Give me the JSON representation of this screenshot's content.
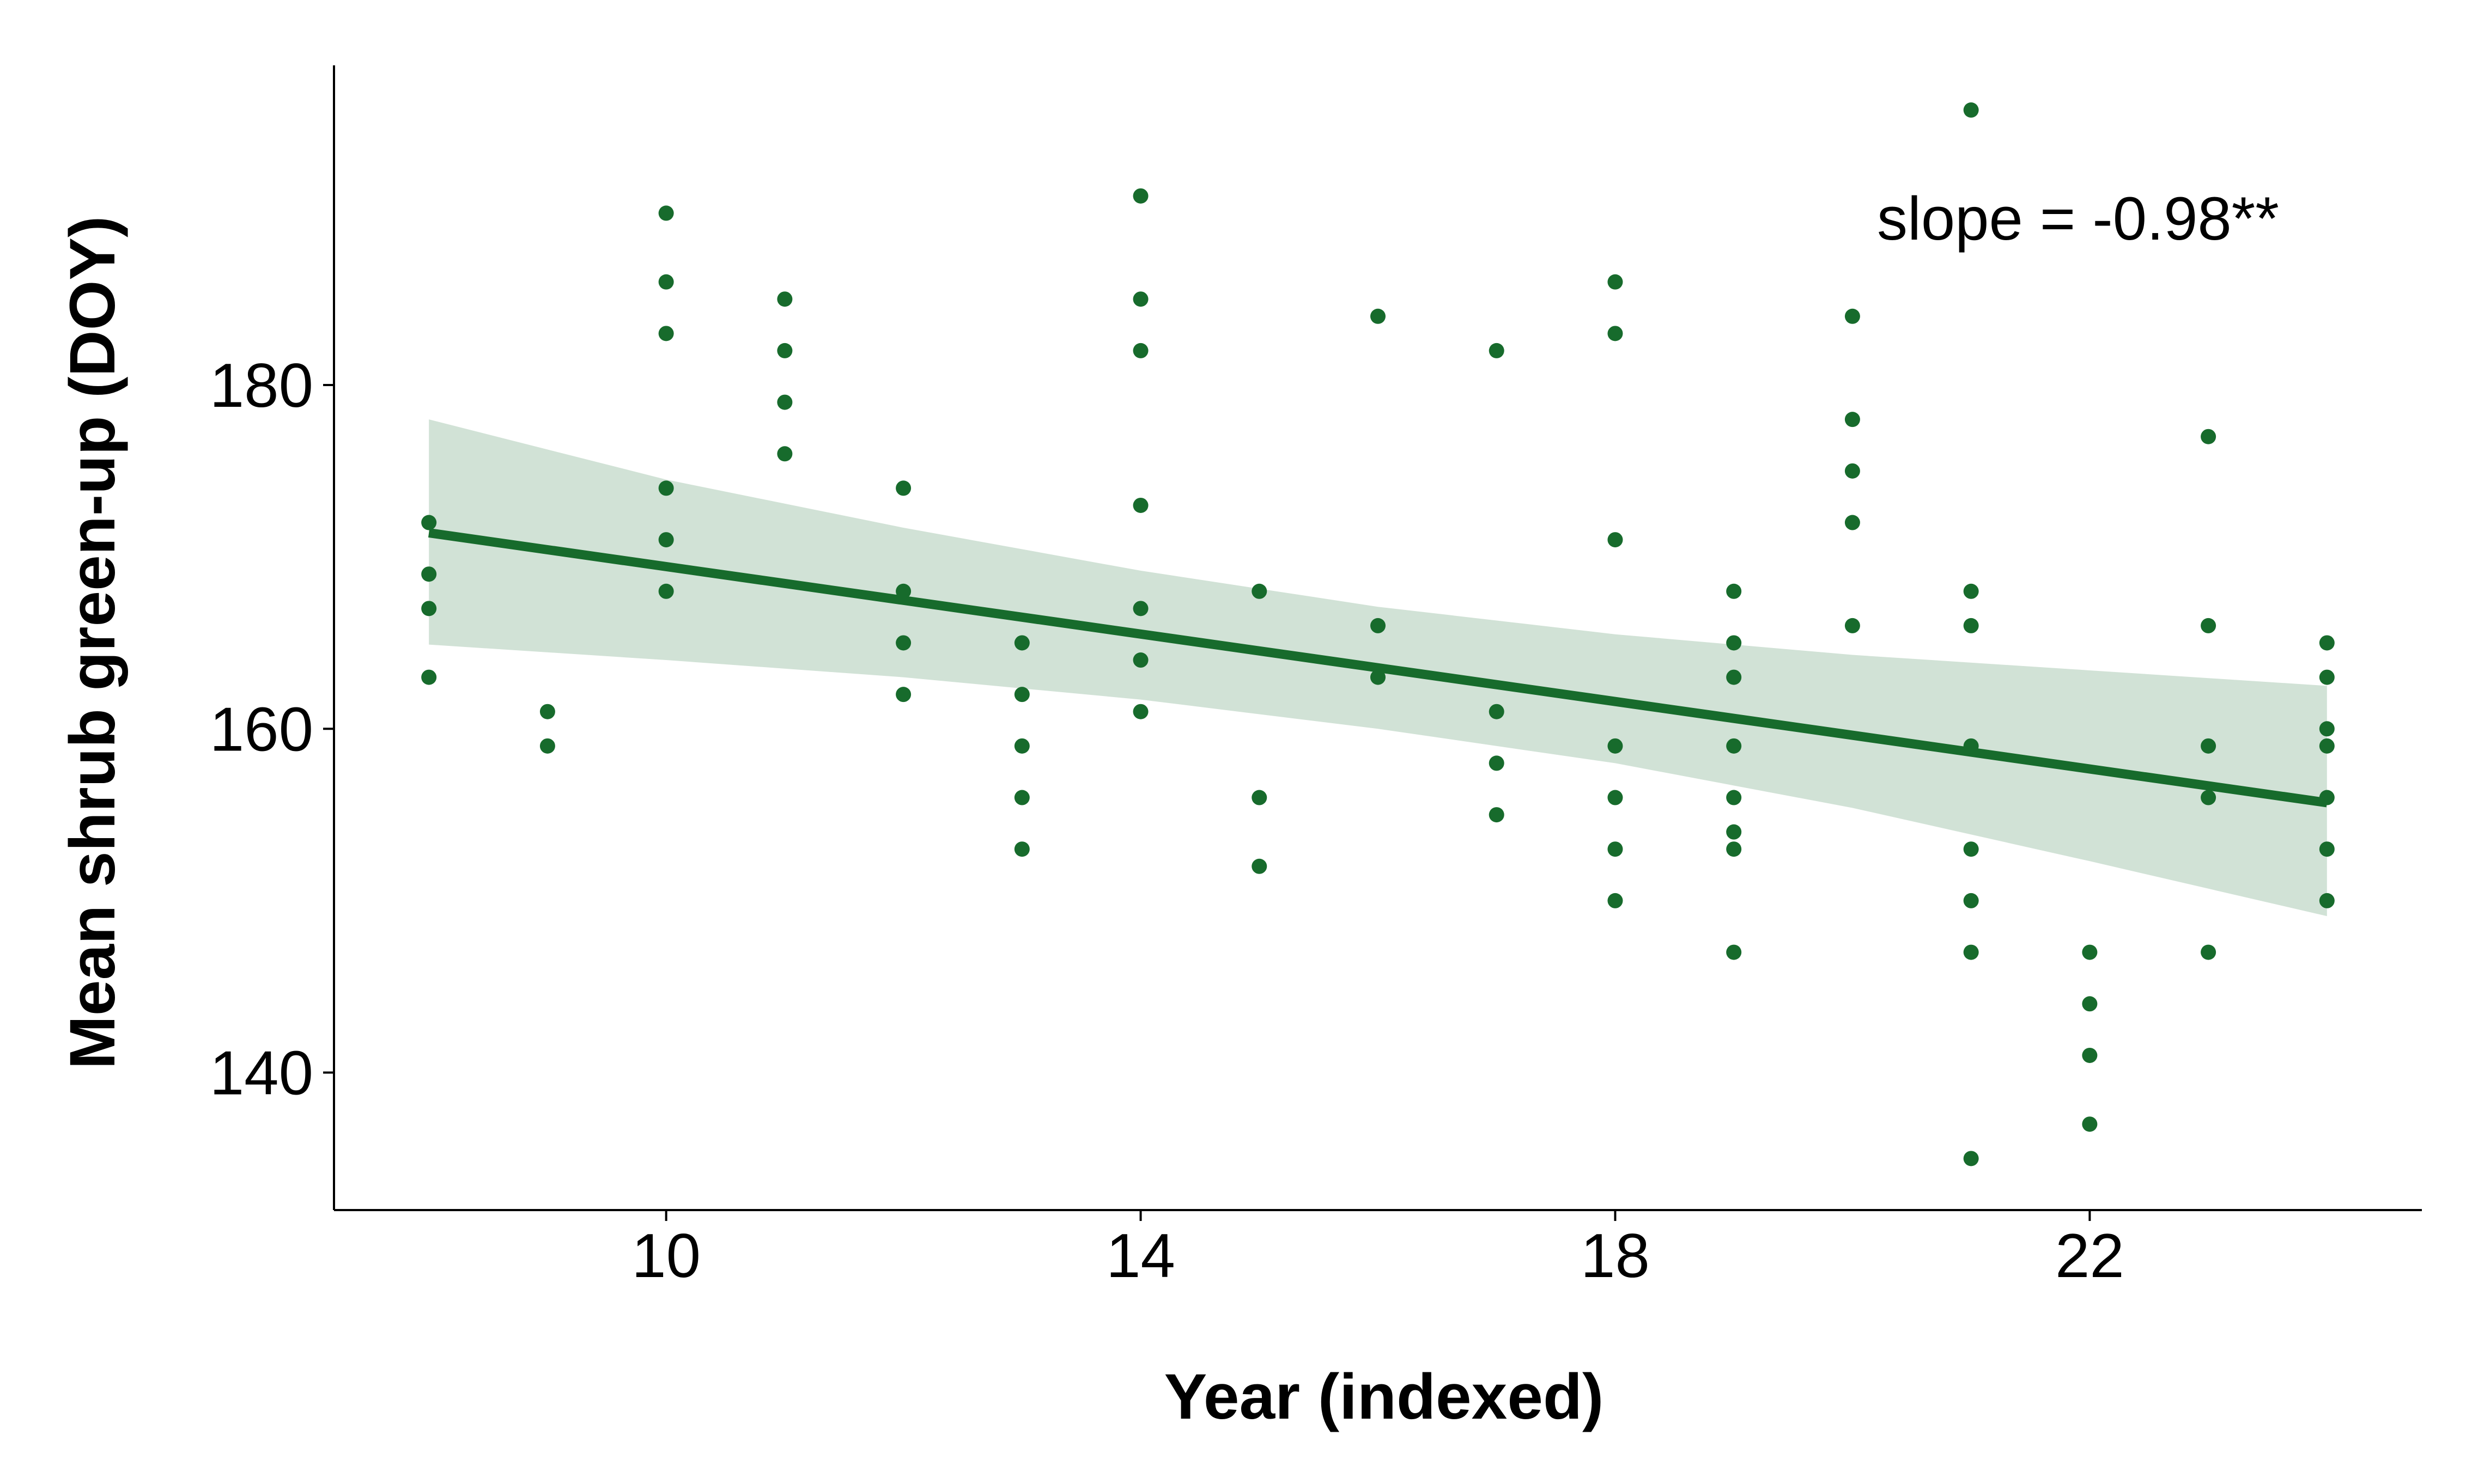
{
  "chart_data": {
    "type": "scatter",
    "title": "",
    "xlabel": "Year (indexed)",
    "ylabel": "Mean shrub green-up (DOY)",
    "xlim": [
      7.2,
      24.8
    ],
    "ylim": [
      132,
      198.6
    ],
    "xticks": [
      10,
      14,
      18,
      22
    ],
    "yticks": [
      140,
      160,
      180
    ],
    "grid": false,
    "legend": "none",
    "annotation": "slope = -0.98**",
    "colors": {
      "points": "#176b2c",
      "fit_line": "#176b2c",
      "confidence_band": "#d1e2d6"
    },
    "points": [
      {
        "x": 8,
        "y": 172
      },
      {
        "x": 8,
        "y": 169
      },
      {
        "x": 8,
        "y": 167
      },
      {
        "x": 8,
        "y": 163
      },
      {
        "x": 9,
        "y": 161
      },
      {
        "x": 9,
        "y": 159
      },
      {
        "x": 10,
        "y": 190
      },
      {
        "x": 10,
        "y": 186
      },
      {
        "x": 10,
        "y": 183
      },
      {
        "x": 10,
        "y": 174
      },
      {
        "x": 10,
        "y": 171
      },
      {
        "x": 10,
        "y": 168
      },
      {
        "x": 11,
        "y": 185
      },
      {
        "x": 11,
        "y": 182
      },
      {
        "x": 11,
        "y": 179
      },
      {
        "x": 11,
        "y": 176
      },
      {
        "x": 12,
        "y": 174
      },
      {
        "x": 12,
        "y": 168
      },
      {
        "x": 12,
        "y": 165
      },
      {
        "x": 12,
        "y": 162
      },
      {
        "x": 13,
        "y": 165
      },
      {
        "x": 13,
        "y": 162
      },
      {
        "x": 13,
        "y": 159
      },
      {
        "x": 13,
        "y": 156
      },
      {
        "x": 13,
        "y": 153
      },
      {
        "x": 14,
        "y": 191
      },
      {
        "x": 14,
        "y": 185
      },
      {
        "x": 14,
        "y": 182
      },
      {
        "x": 14,
        "y": 173
      },
      {
        "x": 14,
        "y": 167
      },
      {
        "x": 14,
        "y": 164
      },
      {
        "x": 14,
        "y": 161
      },
      {
        "x": 15,
        "y": 168
      },
      {
        "x": 15,
        "y": 156
      },
      {
        "x": 15,
        "y": 152
      },
      {
        "x": 16,
        "y": 184
      },
      {
        "x": 16,
        "y": 166
      },
      {
        "x": 16,
        "y": 163
      },
      {
        "x": 17,
        "y": 182
      },
      {
        "x": 17,
        "y": 161
      },
      {
        "x": 17,
        "y": 158
      },
      {
        "x": 17,
        "y": 155
      },
      {
        "x": 18,
        "y": 186
      },
      {
        "x": 18,
        "y": 183
      },
      {
        "x": 18,
        "y": 171
      },
      {
        "x": 18,
        "y": 159
      },
      {
        "x": 18,
        "y": 156
      },
      {
        "x": 18,
        "y": 153
      },
      {
        "x": 18,
        "y": 150
      },
      {
        "x": 19,
        "y": 168
      },
      {
        "x": 19,
        "y": 165
      },
      {
        "x": 19,
        "y": 163
      },
      {
        "x": 19,
        "y": 159
      },
      {
        "x": 19,
        "y": 156
      },
      {
        "x": 19,
        "y": 154
      },
      {
        "x": 19,
        "y": 153
      },
      {
        "x": 19,
        "y": 147
      },
      {
        "x": 20,
        "y": 184
      },
      {
        "x": 20,
        "y": 178
      },
      {
        "x": 20,
        "y": 175
      },
      {
        "x": 20,
        "y": 172
      },
      {
        "x": 20,
        "y": 166
      },
      {
        "x": 21,
        "y": 196
      },
      {
        "x": 21,
        "y": 168
      },
      {
        "x": 21,
        "y": 166
      },
      {
        "x": 21,
        "y": 159
      },
      {
        "x": 21,
        "y": 153
      },
      {
        "x": 21,
        "y": 150
      },
      {
        "x": 21,
        "y": 147
      },
      {
        "x": 21,
        "y": 135
      },
      {
        "x": 22,
        "y": 147
      },
      {
        "x": 22,
        "y": 144
      },
      {
        "x": 22,
        "y": 141
      },
      {
        "x": 22,
        "y": 137
      },
      {
        "x": 23,
        "y": 177
      },
      {
        "x": 23,
        "y": 166
      },
      {
        "x": 23,
        "y": 159
      },
      {
        "x": 23,
        "y": 156
      },
      {
        "x": 23,
        "y": 147
      },
      {
        "x": 24,
        "y": 165
      },
      {
        "x": 24,
        "y": 163
      },
      {
        "x": 24,
        "y": 160
      },
      {
        "x": 24,
        "y": 159
      },
      {
        "x": 24,
        "y": 156
      },
      {
        "x": 24,
        "y": 153
      },
      {
        "x": 24,
        "y": 150
      }
    ],
    "fit": {
      "x": [
        8,
        24
      ],
      "y": [
        171.4,
        155.7
      ],
      "slope": -0.98
    },
    "confidence_band": {
      "x": [
        8,
        10,
        12,
        14,
        16,
        18,
        20,
        22,
        24
      ],
      "upper": [
        178.0,
        174.5,
        171.7,
        169.2,
        167.1,
        165.5,
        164.3,
        163.4,
        162.5
      ],
      "lower": [
        164.9,
        164.0,
        163.0,
        161.7,
        160.0,
        158.0,
        155.4,
        152.3,
        149.1
      ]
    }
  }
}
